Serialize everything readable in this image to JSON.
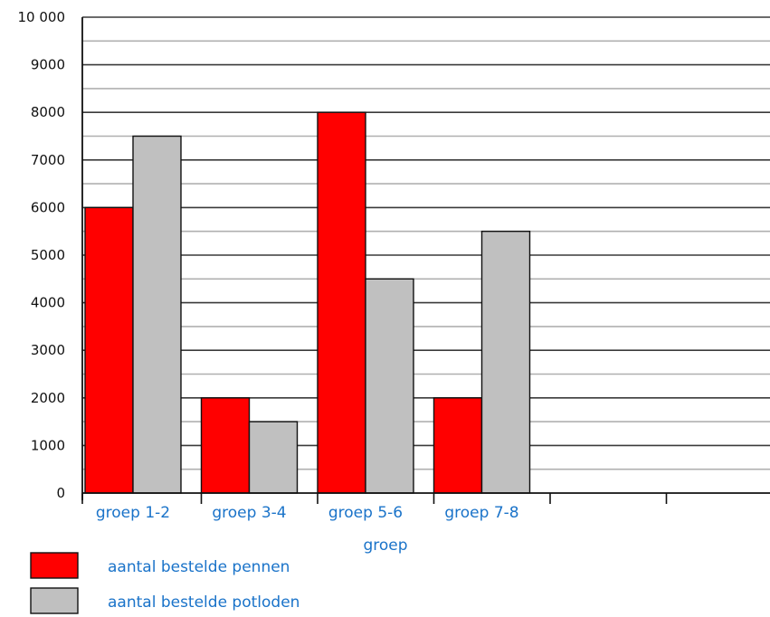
{
  "chart_data": {
    "type": "bar",
    "categories": [
      "groep 1-2",
      "groep 3-4",
      "groep 5-6",
      "groep 7-8"
    ],
    "series": [
      {
        "name": "aantal bestelde pennen",
        "values": [
          6000,
          2000,
          8000,
          2000
        ],
        "color": "#ff0000"
      },
      {
        "name": "aantal bestelde potloden",
        "values": [
          7500,
          1500,
          4500,
          5500
        ],
        "color": "#c0c0c0"
      }
    ],
    "title": "",
    "xlabel": "groep",
    "ylabel": "",
    "ylim": [
      0,
      10000
    ],
    "yticks": [
      {
        "value": 0,
        "label": "0"
      },
      {
        "value": 1000,
        "label": "1000"
      },
      {
        "value": 2000,
        "label": "2000"
      },
      {
        "value": 3000,
        "label": "3000"
      },
      {
        "value": 4000,
        "label": "4000"
      },
      {
        "value": 5000,
        "label": "5000"
      },
      {
        "value": 6000,
        "label": "6000"
      },
      {
        "value": 7000,
        "label": "7000"
      },
      {
        "value": 8000,
        "label": "8000"
      },
      {
        "value": 9000,
        "label": "9000"
      },
      {
        "value": 10000,
        "label": "10 000"
      }
    ],
    "grid": true,
    "legend_position": "bottom-left"
  }
}
